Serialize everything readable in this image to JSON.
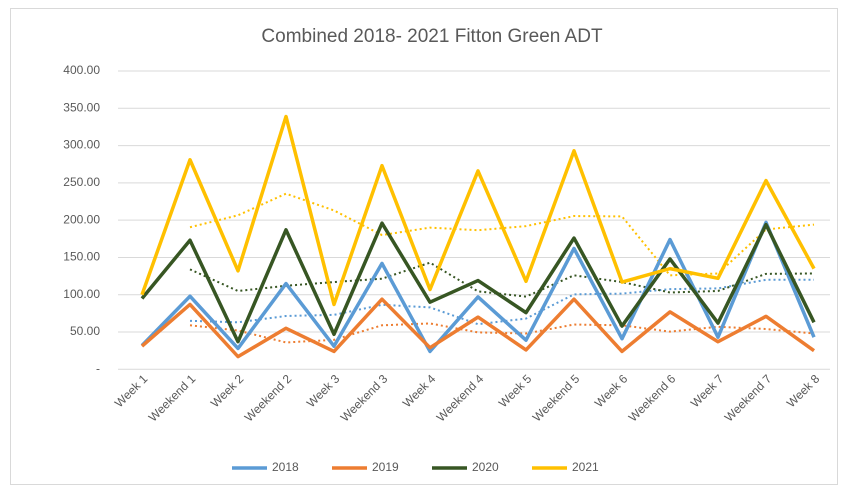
{
  "chart_data": {
    "type": "line",
    "title": "Combined 2018- 2021 Fitton Green ADT",
    "categories": [
      "Week 1",
      "Weekend 1",
      "Week 2",
      "Weekend 2",
      "Week 3",
      "Weekend 3",
      "Week 4",
      "Weekend 4",
      "Week 5",
      "Weekend 5",
      "Week 6",
      "Weekend 6",
      "Week 7",
      "Weekend 7",
      "Week 8"
    ],
    "series": [
      {
        "name": "2018",
        "color": "#5b9bd5",
        "values": [
          32,
          98,
          28,
          115,
          31,
          142,
          24,
          97,
          39,
          162,
          41,
          174,
          43,
          197,
          43
        ]
      },
      {
        "name": "2019",
        "color": "#ed7d31",
        "values": [
          31,
          87,
          17,
          55,
          24,
          94,
          29,
          70,
          26,
          94,
          24,
          77,
          37,
          71,
          25
        ]
      },
      {
        "name": "2020",
        "color": "#375623",
        "values": [
          95,
          173,
          37,
          187,
          47,
          196,
          90,
          119,
          76,
          176,
          58,
          148,
          62,
          194,
          63
        ]
      },
      {
        "name": "2021",
        "color": "#ffc000",
        "values": [
          100,
          281,
          132,
          339,
          87,
          273,
          107,
          266,
          118,
          293,
          117,
          135,
          122,
          253,
          135
        ]
      }
    ],
    "ylim": [
      0,
      400
    ],
    "yticks": [
      {
        "value": 0,
        "label": "-"
      },
      {
        "value": 50,
        "label": "50.00"
      },
      {
        "value": 100,
        "label": "100.00"
      },
      {
        "value": 150,
        "label": "150.00"
      },
      {
        "value": 200,
        "label": "200.00"
      },
      {
        "value": 250,
        "label": "250.00"
      },
      {
        "value": 300,
        "label": "300.00"
      },
      {
        "value": 350,
        "label": "350.00"
      },
      {
        "value": 400,
        "label": "400.00"
      }
    ],
    "grid": true,
    "legend": "bottom",
    "trendline_period": 2
  }
}
